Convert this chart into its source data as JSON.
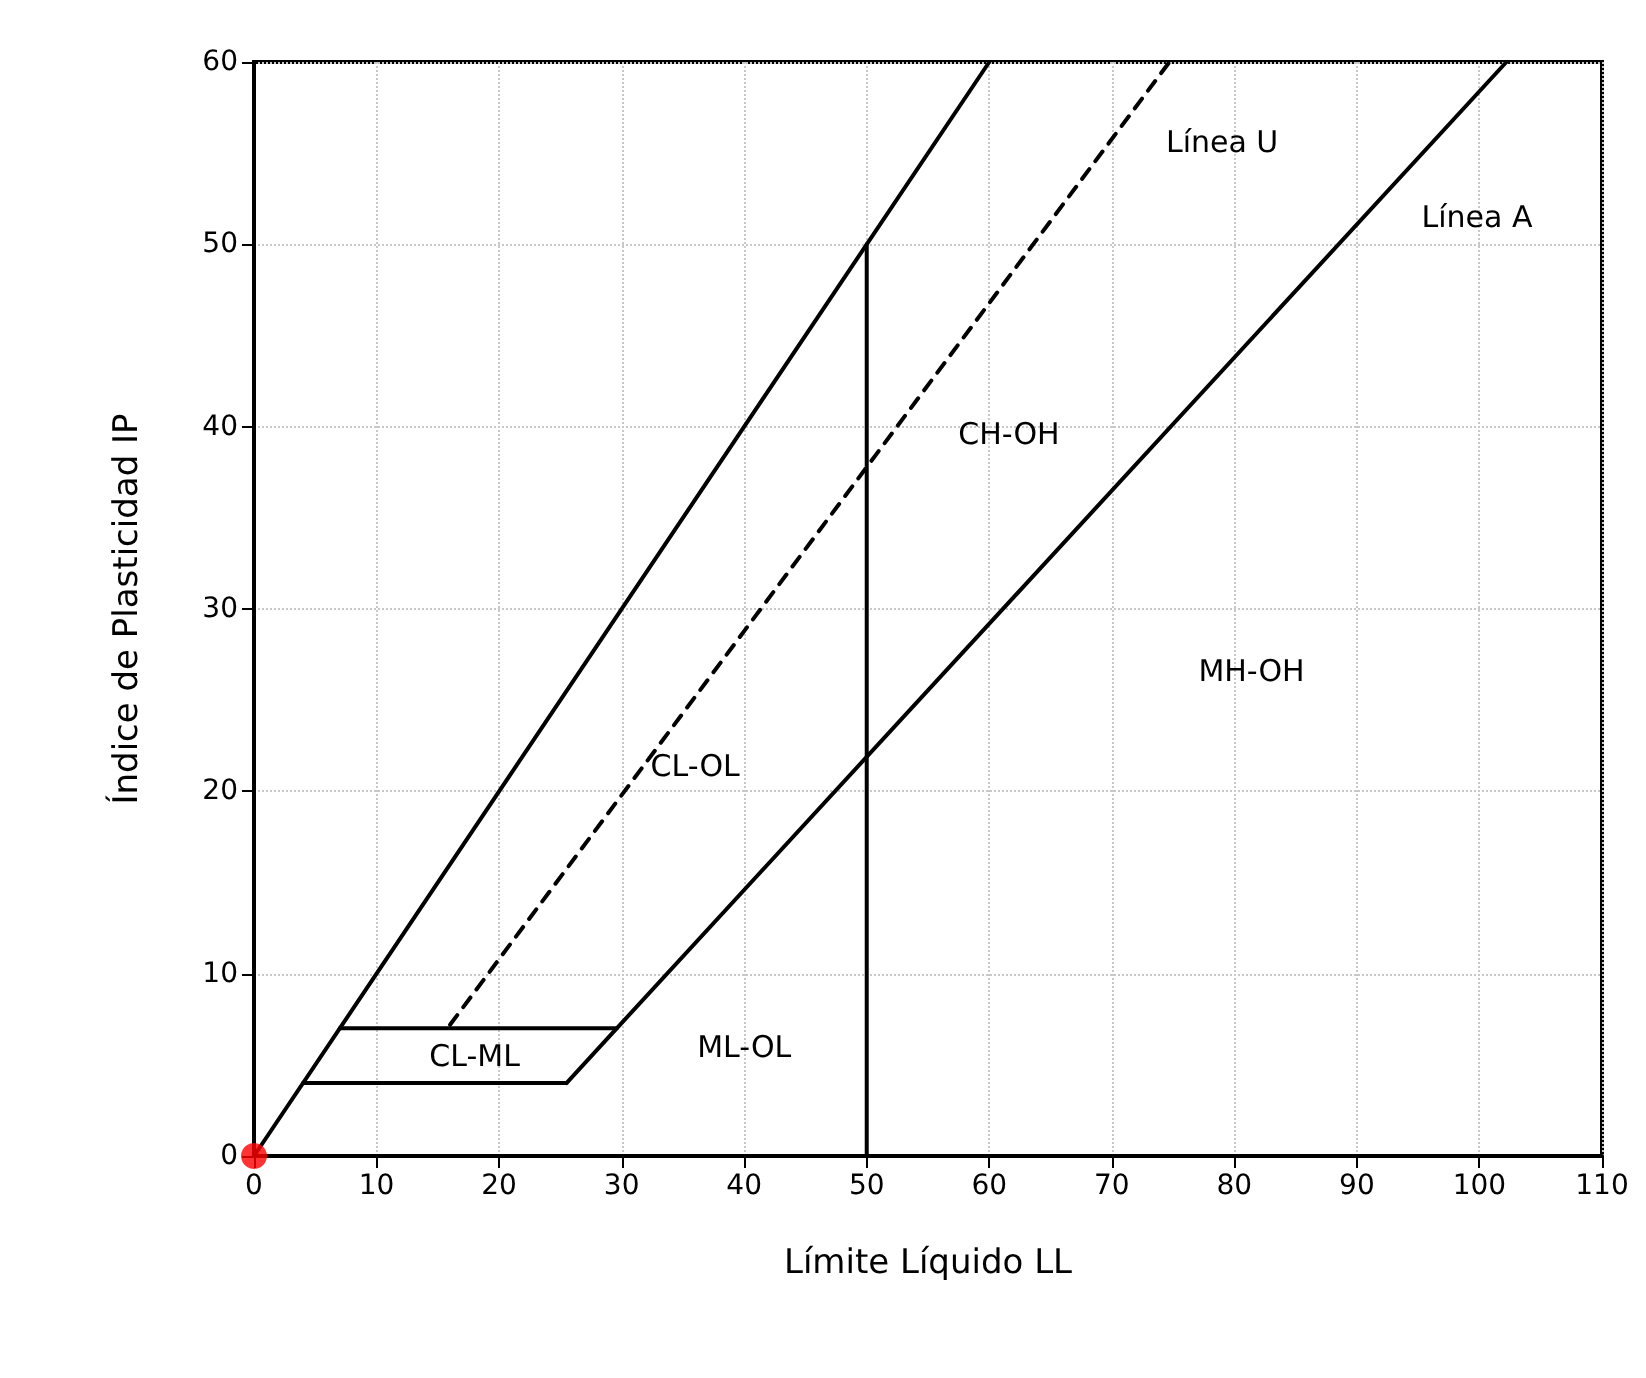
{
  "chart_data": {
    "type": "line",
    "xlabel": "Límite Líquido LL",
    "ylabel": "Índice de Plasticidad IP",
    "xlim": [
      0,
      110
    ],
    "xticks": [
      0,
      10,
      20,
      30,
      40,
      50,
      60,
      70,
      80,
      90,
      100,
      110
    ],
    "ylim": [
      0,
      60
    ],
    "yticks": [
      0,
      10,
      20,
      30,
      40,
      50,
      60
    ],
    "grid": true,
    "marker": "none",
    "series": [
      {
        "color": "#000000",
        "line_style": "solid",
        "x": [
          0,
          60
        ],
        "values": [
          0,
          60
        ]
      },
      {
        "color": "#000000",
        "line_style": "dashed",
        "x": [
          16,
          74.7
        ],
        "values": [
          7.2,
          60
        ]
      },
      {
        "color": "#000000",
        "line_style": "solid",
        "x": [
          25.5,
          29.6,
          102.2
        ],
        "values": [
          4,
          7,
          60
        ]
      },
      {
        "color": "#000000",
        "line_style": "solid",
        "x": [
          7,
          29.6
        ],
        "values": [
          7,
          7
        ]
      },
      {
        "color": "#000000",
        "line_style": "solid",
        "x": [
          4,
          25.5
        ],
        "values": [
          4,
          4
        ]
      },
      {
        "color": "#000000",
        "line_style": "solid",
        "x": [
          50,
          50
        ],
        "values": [
          0,
          50
        ]
      },
      {
        "type": "scatter",
        "marker": "circle",
        "color": "#ff0000",
        "x": [
          0
        ],
        "values": [
          0
        ]
      }
    ],
    "annotations": [
      "CL-ML",
      "ML-OL",
      "CL-OL",
      "CH-OH",
      "MH-OH",
      "Línea U",
      "Línea A"
    ]
  }
}
